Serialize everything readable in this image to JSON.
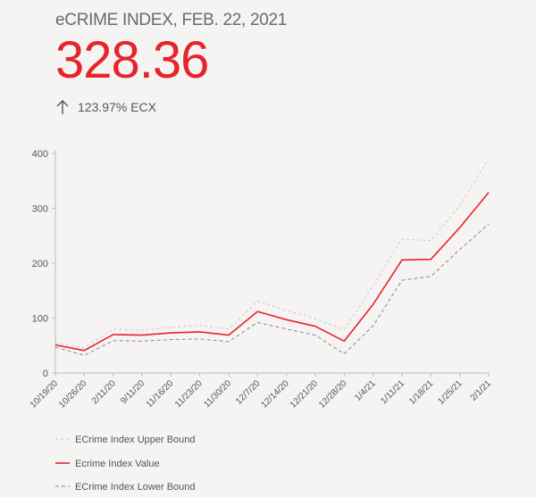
{
  "header": {
    "title": "eCRIME INDEX, FEB. 22, 2021",
    "value": "328.36",
    "change": "123.97% ECX",
    "change_icon": "arrow-up-icon",
    "value_color": "#e6242c"
  },
  "chart_data": {
    "type": "line",
    "categories": [
      "10/19/20",
      "10/26/20",
      "2/11/20",
      "9/11/20",
      "11/16/20",
      "11/23/20",
      "11/30/20",
      "12/7/20",
      "12/14/20",
      "12/21/20",
      "12/28/20",
      "1/4/21",
      "1/11/21",
      "1/18/21",
      "1/25/21",
      "2/1/21"
    ],
    "ylim": [
      0,
      400
    ],
    "yticks": [
      0,
      100,
      200,
      300,
      400
    ],
    "grid": false,
    "legend_position": "bottom-left",
    "series": [
      {
        "name": "ECrime Index Upper Bound",
        "color": "#c9c9c9",
        "dash": "3,3",
        "values": [
          54,
          46,
          80,
          78,
          83,
          87,
          80,
          131,
          114,
          99,
          79,
          160,
          244,
          241,
          305,
          390
        ]
      },
      {
        "name": "Ecrime Index Value",
        "color": "#e6242c",
        "dash": "",
        "values": [
          51,
          41,
          70,
          69,
          73,
          75,
          69,
          112,
          97,
          85,
          58,
          125,
          206,
          207,
          265,
          329
        ]
      },
      {
        "name": "ECrime Index Lower Bound",
        "color": "#8a8a8a",
        "dash": "4,3",
        "values": [
          47,
          32,
          59,
          58,
          61,
          62,
          57,
          92,
          80,
          69,
          35,
          86,
          169,
          176,
          225,
          271
        ]
      }
    ]
  }
}
